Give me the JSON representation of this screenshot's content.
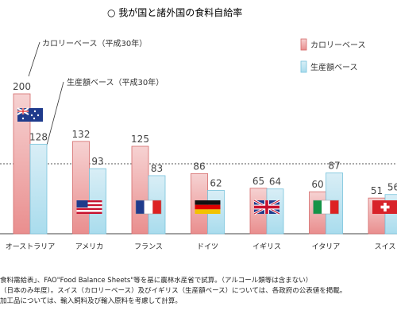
{
  "chart_data": {
    "type": "bar",
    "title": "○ 我が国と諸外国の食料自給率",
    "categories": [
      "オーストラリア",
      "アメリカ",
      "フランス",
      "ドイツ",
      "イギリス",
      "イタリア",
      "スイス"
    ],
    "series": [
      {
        "name": "カロリーベース",
        "values": [
          200,
          132,
          125,
          86,
          65,
          60,
          51
        ]
      },
      {
        "name": "生産額ベース",
        "values": [
          128,
          93,
          83,
          62,
          64,
          87,
          56
        ]
      }
    ],
    "ylim": [
      0,
      220
    ],
    "reference_line": 100,
    "legend_position": "top-right",
    "colors": {
      "calorie_fill_top": "#f6d2d2",
      "calorie_fill_bottom": "#e98e8e",
      "calorie_stroke": "#d46a6a",
      "production_fill_top": "#d9eef6",
      "production_fill_bottom": "#a9dced",
      "production_stroke": "#78c3dc"
    },
    "annotations": [
      {
        "text": "カロリーベース（平成30年）",
        "series": 0,
        "category": 0
      },
      {
        "text": "生産額ベース（平成30年）",
        "series": 1,
        "category": 0
      }
    ],
    "flags": [
      "australia",
      "usa",
      "france",
      "germany",
      "uk",
      "italy",
      "switzerland"
    ]
  },
  "notes": [
    "食料需給表」、FAO\"Food Balance Sheets\"等を基に農林水産省で試算。（アルコール類等は含まない）",
    "（日本のみ年度）。スイス（カロリーベース）及びイギリス（生産額ベース）については、各政府の公表値を掲載。",
    "加工品については、輸入飼料及び輸入原料を考慮して計算。"
  ]
}
